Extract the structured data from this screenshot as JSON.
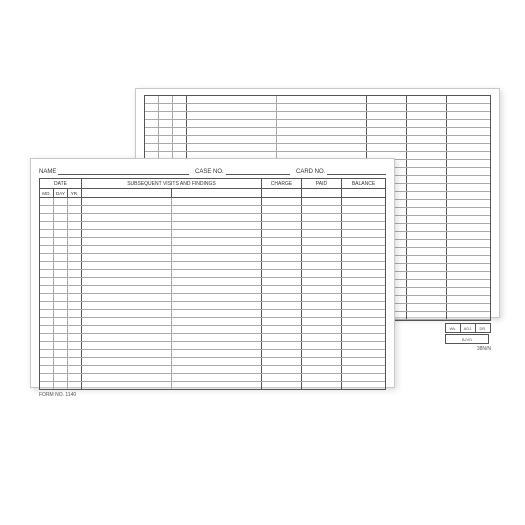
{
  "form": {
    "name_label": "NAME",
    "case_no_label": "CASE NO.",
    "card_no_label": "CARD NO.",
    "date_header": "DATE",
    "date_sub": {
      "mo": "MO.",
      "day": "DAY",
      "yr": "YR."
    },
    "findings_header": "SUBSEQUENT VISITS AND FINDINGS",
    "charge_header": "CHARGE",
    "paid_header": "PAID",
    "balance_header": "BALANCE",
    "form_no": "FORM NO. 1140",
    "row_count": 24
  },
  "back": {
    "row_count": 28,
    "mini": {
      "wk": "Wk.",
      "adj": "ADJ.",
      "dr": "DR."
    },
    "bjvd": "BJVD",
    "code": "38N/N"
  },
  "layout": {
    "col_widths_front": {
      "mo": 14,
      "day": 14,
      "yr": 14,
      "findings_a": 90,
      "findings_b": 90,
      "charge": 40,
      "paid": 40,
      "balance": 45
    },
    "col_widths_back": {
      "a": 14,
      "b": 14,
      "c": 14,
      "d": 90,
      "e": 90,
      "f": 40,
      "g": 40,
      "h": 45
    },
    "colors": {
      "border": "#555555",
      "light_rule": "#aaaaaa",
      "shadow": "rgba(0,0,0,0.15)",
      "card_border": "#c8c8c8",
      "bg": "#ffffff"
    }
  }
}
